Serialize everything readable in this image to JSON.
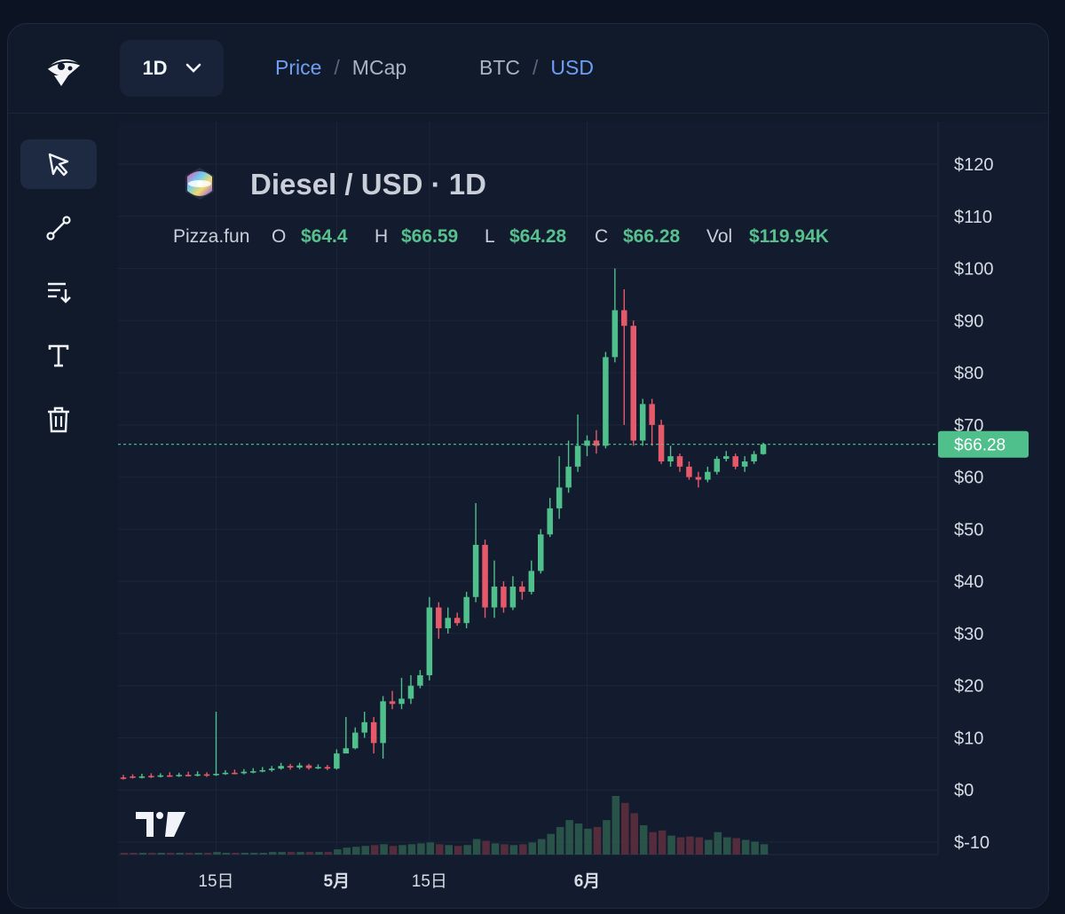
{
  "header": {
    "interval": "1D",
    "metric_toggle": {
      "price": "Price",
      "sep": "/",
      "mcap": "MCap",
      "active": "Price"
    },
    "quote_toggle": {
      "btc": "BTC",
      "sep": "/",
      "usd": "USD",
      "active": "USD"
    }
  },
  "toolbar": {
    "items": [
      {
        "name": "cursor",
        "icon": "cursor-arrow-icon",
        "selected": true
      },
      {
        "name": "trend-line",
        "icon": "trend-line-icon",
        "selected": false
      },
      {
        "name": "order",
        "icon": "sort-down-icon",
        "selected": false
      },
      {
        "name": "text",
        "icon": "text-tool-icon",
        "selected": false
      },
      {
        "name": "delete",
        "icon": "trash-icon",
        "selected": false
      }
    ]
  },
  "legend": {
    "title": "Diesel / USD · 1D",
    "source": "Pizza.fun",
    "o_label": "O",
    "o_value": "$64.4",
    "h_label": "H",
    "h_value": "$66.59",
    "l_label": "L",
    "l_value": "$64.28",
    "c_label": "C",
    "c_value": "$66.28",
    "vol_label": "Vol",
    "vol_value": "$119.94K"
  },
  "colors": {
    "up": "#4fbf8b",
    "down": "#e5596a",
    "price_line": "#57c08d",
    "grid": "#1c2638",
    "axis_text": "#d6dbe4"
  },
  "chart_data": {
    "type": "candlestick",
    "y_ticks": [
      "$120",
      "$110",
      "$100",
      "$90",
      "$80",
      "$70",
      "$60",
      "$50",
      "$40",
      "$30",
      "$20",
      "$10",
      "$0",
      "$-10"
    ],
    "x_ticks": [
      {
        "label": "15日",
        "index": 10
      },
      {
        "label": "5月",
        "index": 23
      },
      {
        "label": "15日",
        "index": 33
      },
      {
        "label": "6月",
        "index": 50
      }
    ],
    "ylim": [
      -10,
      120
    ],
    "current_price": 66.28,
    "current_price_label": "$66.28",
    "candles": [
      [
        2.4,
        2.3,
        2.9,
        2.0
      ],
      [
        2.6,
        2.4,
        3.0,
        2.2
      ],
      [
        2.5,
        2.6,
        3.1,
        2.2
      ],
      [
        2.7,
        2.5,
        3.2,
        2.3
      ],
      [
        2.6,
        2.8,
        3.2,
        2.4
      ],
      [
        2.8,
        2.7,
        3.4,
        2.5
      ],
      [
        2.7,
        2.9,
        3.3,
        2.5
      ],
      [
        2.9,
        2.8,
        3.5,
        2.6
      ],
      [
        2.8,
        3.0,
        3.6,
        2.6
      ],
      [
        3.0,
        2.8,
        3.4,
        2.5
      ],
      [
        2.9,
        3.1,
        15.0,
        2.7
      ],
      [
        3.1,
        3.3,
        3.8,
        2.9
      ],
      [
        3.3,
        3.2,
        3.9,
        3.0
      ],
      [
        3.2,
        3.5,
        4.0,
        3.0
      ],
      [
        3.5,
        3.6,
        4.2,
        3.2
      ],
      [
        3.6,
        3.8,
        4.4,
        3.4
      ],
      [
        3.8,
        4.1,
        4.6,
        3.5
      ],
      [
        4.1,
        4.6,
        5.2,
        3.9
      ],
      [
        4.6,
        4.3,
        5.0,
        3.9
      ],
      [
        4.3,
        4.7,
        5.2,
        4.0
      ],
      [
        4.7,
        4.2,
        5.0,
        3.9
      ],
      [
        4.2,
        4.4,
        4.9,
        4.0
      ],
      [
        4.4,
        4.1,
        4.8,
        3.8
      ],
      [
        4.1,
        7.0,
        7.8,
        3.9
      ],
      [
        7.0,
        8.0,
        14.0,
        7.0
      ],
      [
        8.0,
        11.0,
        12.0,
        7.8
      ],
      [
        11.0,
        13.0,
        15.0,
        10.0
      ],
      [
        13.0,
        9.0,
        14.0,
        7.0
      ],
      [
        9.0,
        17.0,
        18.0,
        6.0
      ],
      [
        17.0,
        16.5,
        19.0,
        15.5
      ],
      [
        16.5,
        17.5,
        21.5,
        15.5
      ],
      [
        17.5,
        20.0,
        22.0,
        16.5
      ],
      [
        20.0,
        22.0,
        23.0,
        19.5
      ],
      [
        22.0,
        35.0,
        37.0,
        21.0
      ],
      [
        35.0,
        31.0,
        36.0,
        29.0
      ],
      [
        31.0,
        33.0,
        35.0,
        30.0
      ],
      [
        33.0,
        32.0,
        34.0,
        31.5
      ],
      [
        32.0,
        37.0,
        38.0,
        31.0
      ],
      [
        37.0,
        47.0,
        55.0,
        36.0
      ],
      [
        47.0,
        35.0,
        48.0,
        33.0
      ],
      [
        35.0,
        39.0,
        44.0,
        33.0
      ],
      [
        39.0,
        35.0,
        40.0,
        34.0
      ],
      [
        35.0,
        39.0,
        41.0,
        34.5
      ],
      [
        39.0,
        38.0,
        40.0,
        36.5
      ],
      [
        38.0,
        42.0,
        44.0,
        37.5
      ],
      [
        42.0,
        49.0,
        50.0,
        41.5
      ],
      [
        49.0,
        54.0,
        56.0,
        48.5
      ],
      [
        54.0,
        58.0,
        64.0,
        52.0
      ],
      [
        58.0,
        62.0,
        67.0,
        57.0
      ],
      [
        62.0,
        66.0,
        72.0,
        61.0
      ],
      [
        66.0,
        67.0,
        68.0,
        64.0
      ],
      [
        67.0,
        66.0,
        69.0,
        64.5
      ],
      [
        66.0,
        83.0,
        84.0,
        65.5
      ],
      [
        83.0,
        92.0,
        100.0,
        82.0
      ],
      [
        92.0,
        89.0,
        96.0,
        70.0
      ],
      [
        89.0,
        67.0,
        90.0,
        66.0
      ],
      [
        67.0,
        74.0,
        75.0,
        66.0
      ],
      [
        74.0,
        70.0,
        75.0,
        66.0
      ],
      [
        70.0,
        63.0,
        71.0,
        62.5
      ],
      [
        63.0,
        64.0,
        66.0,
        62.0
      ],
      [
        64.0,
        62.0,
        64.5,
        61.0
      ],
      [
        62.0,
        60.0,
        63.0,
        59.5
      ],
      [
        60.0,
        59.5,
        61.0,
        58.0
      ],
      [
        59.5,
        61.0,
        62.0,
        59.0
      ],
      [
        61.0,
        63.5,
        64.0,
        60.5
      ],
      [
        63.5,
        64.0,
        65.0,
        63.0
      ],
      [
        64.0,
        62.0,
        64.5,
        61.5
      ],
      [
        62.0,
        63.0,
        64.0,
        61.0
      ],
      [
        63.0,
        64.4,
        65.0,
        62.5
      ],
      [
        64.4,
        66.28,
        66.59,
        64.28
      ]
    ],
    "volume": [
      0.2,
      0.2,
      0.2,
      0.2,
      0.2,
      0.2,
      0.2,
      0.2,
      0.2,
      0.2,
      0.3,
      0.2,
      0.2,
      0.2,
      0.2,
      0.2,
      0.3,
      0.3,
      0.3,
      0.3,
      0.3,
      0.3,
      0.3,
      0.6,
      0.8,
      0.9,
      1.0,
      1.1,
      1.2,
      1.0,
      1.1,
      1.2,
      1.3,
      1.4,
      1.2,
      1.1,
      1.0,
      1.1,
      1.8,
      1.6,
      1.3,
      1.2,
      1.1,
      1.2,
      1.4,
      1.8,
      2.4,
      3.2,
      4.0,
      3.6,
      3.0,
      3.2,
      4.0,
      6.8,
      6.0,
      4.8,
      3.4,
      2.6,
      2.8,
      2.2,
      2.0,
      2.1,
      2.0,
      1.7,
      2.6,
      2.0,
      1.9,
      1.7,
      1.5,
      1.2
    ]
  }
}
